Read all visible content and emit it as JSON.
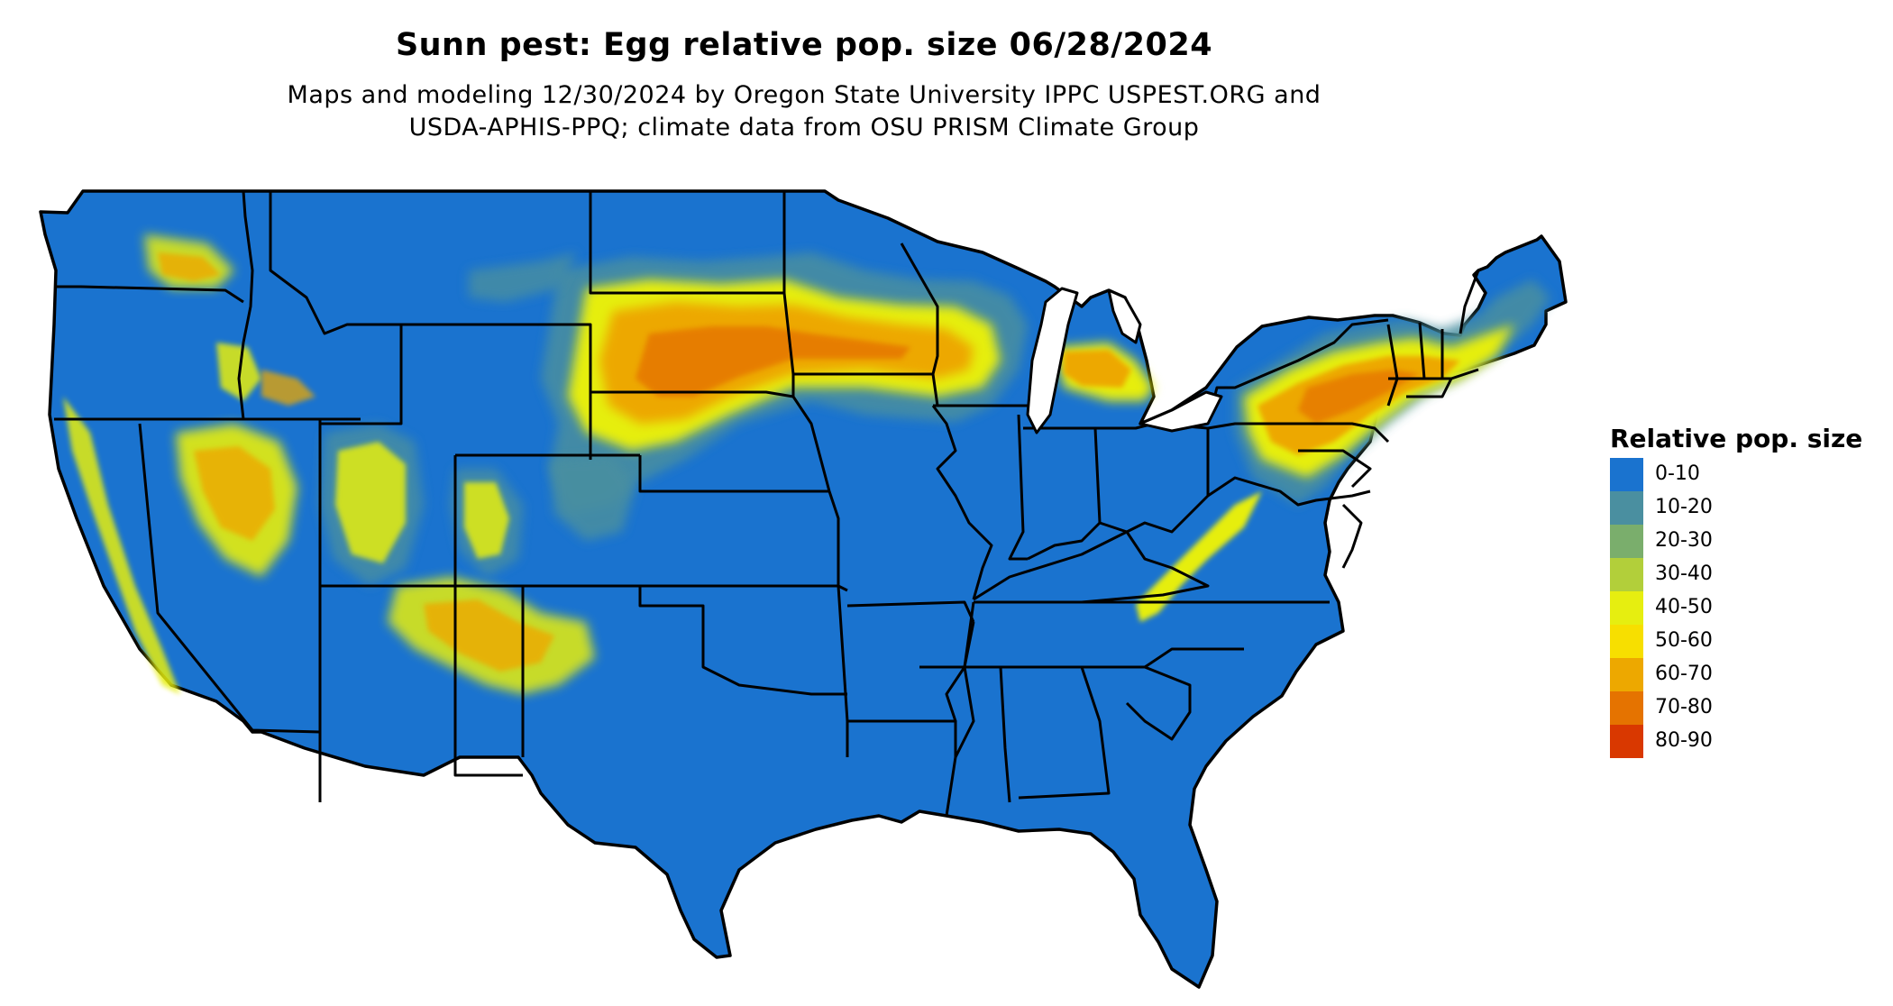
{
  "title": "Sunn pest: Egg relative pop. size 06/28/2024",
  "subtitle_line1": "Maps and modeling 12/30/2024 by Oregon State University IPPC USPEST.ORG and",
  "subtitle_line2": "USDA-APHIS-PPQ; climate data from OSU PRISM Climate Group",
  "legend": {
    "title": "Relative pop. size",
    "items": [
      {
        "label": "0-10",
        "color": "#1a73cf"
      },
      {
        "label": "10-20",
        "color": "#4a8fa0"
      },
      {
        "label": "20-30",
        "color": "#7aae6c"
      },
      {
        "label": "30-40",
        "color": "#b2cf3a"
      },
      {
        "label": "40-50",
        "color": "#e6ee10"
      },
      {
        "label": "50-60",
        "color": "#f7df00"
      },
      {
        "label": "60-70",
        "color": "#eda800"
      },
      {
        "label": "70-80",
        "color": "#e57300"
      },
      {
        "label": "80-90",
        "color": "#d93800"
      }
    ]
  },
  "colors": {
    "background": "#ffffff",
    "border": "#000000"
  }
}
